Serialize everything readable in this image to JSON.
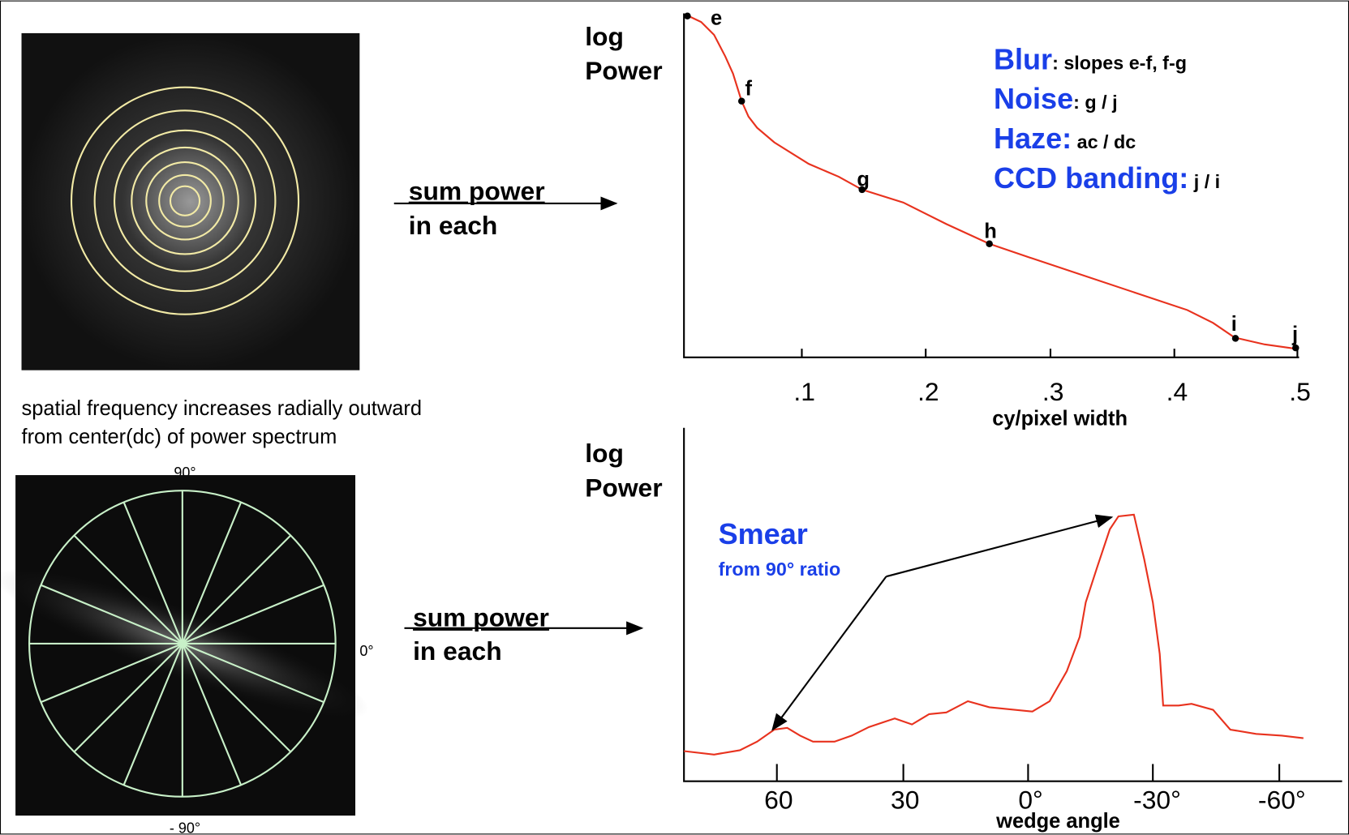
{
  "left_panel": {
    "caption_lines": [
      "spatial frequency increases radially outward",
      "from center(dc) of power spectrum"
    ],
    "angle_labels": {
      "top": "90°",
      "right": "0°",
      "bottom": "- 90°"
    }
  },
  "arrows": [
    {
      "lines": [
        "sum power",
        "in each"
      ]
    },
    {
      "lines": [
        "sum power",
        "in each"
      ]
    }
  ],
  "top_chart": {
    "y_label": [
      "log",
      "Power"
    ],
    "x_label": "cy/pixel width",
    "x_ticks": [
      ".1",
      ".2",
      ".3",
      ".4",
      ".5"
    ],
    "point_labels": [
      "e",
      "f",
      "g",
      "h",
      "i",
      "j"
    ],
    "annotations": [
      {
        "term": "Blur",
        "detail": ":  slopes e-f, f-g"
      },
      {
        "term": "Noise",
        "detail": ":  g / j"
      },
      {
        "term": "Haze:",
        "detail": " ac / dc"
      },
      {
        "term": "CCD banding:",
        "detail": "  j / i"
      }
    ]
  },
  "bottom_chart": {
    "y_label": [
      "log",
      "Power"
    ],
    "x_label": "wedge angle",
    "x_ticks": [
      "60",
      "30",
      "0°",
      "-30°",
      "-60°"
    ],
    "annotation": {
      "title": "Smear",
      "detail": "from 90° ratio"
    }
  }
}
